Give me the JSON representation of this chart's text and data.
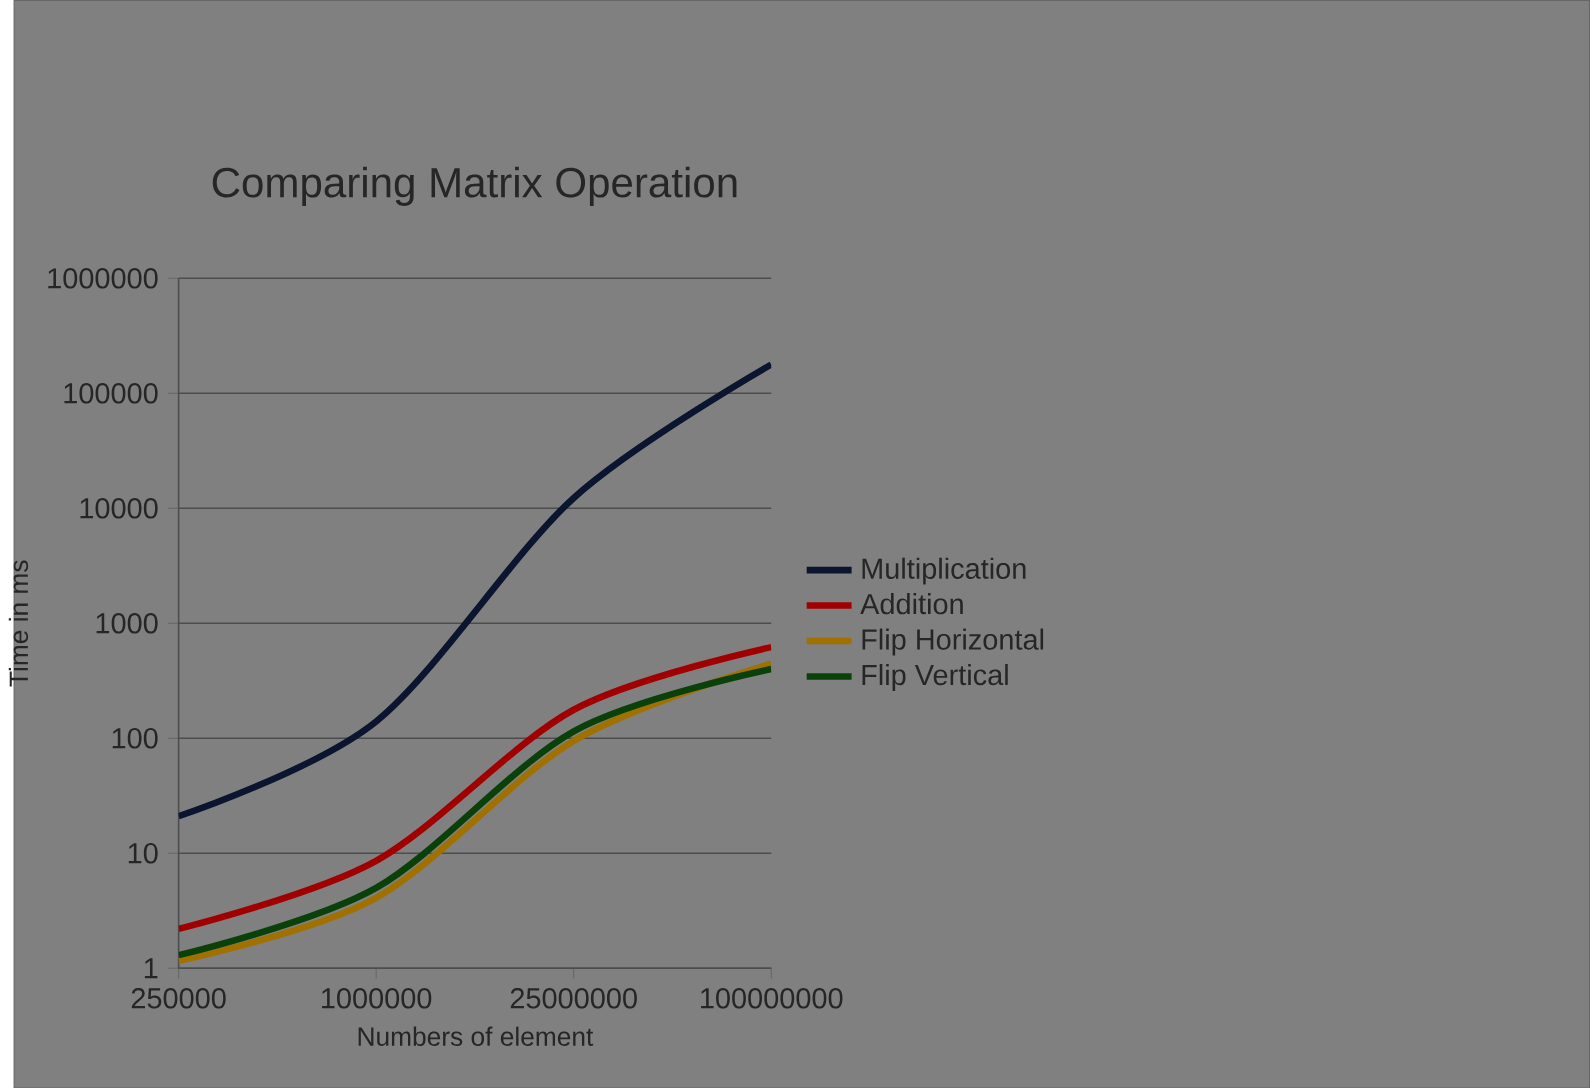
{
  "chart_data": {
    "type": "line",
    "title": "Comparing Matrix Operation",
    "xlabel": "Numbers of element",
    "ylabel": "Time in ms",
    "categories": [
      "250000",
      "1000000",
      "25000000",
      "100000000"
    ],
    "series": [
      {
        "name": "Multiplication",
        "color": "#0b1530",
        "values": [
          21,
          140,
          12300,
          178000
        ]
      },
      {
        "name": "Addition",
        "color": "#a00000",
        "values": [
          2.2,
          8.6,
          177,
          620
        ]
      },
      {
        "name": "Flip Horizontal",
        "color": "#a07000",
        "values": [
          1.16,
          4.1,
          95,
          445
        ]
      },
      {
        "name": "Flip Vertical",
        "color": "#0a400a",
        "values": [
          1.3,
          5,
          115,
          400
        ]
      }
    ],
    "log": "y",
    "ylim": [
      1,
      1000000
    ],
    "yticks": [
      1,
      10,
      100,
      1000,
      10000,
      100000,
      1000000
    ],
    "grid": "y",
    "legend": "right",
    "marker": "none",
    "line_style": "solid"
  }
}
